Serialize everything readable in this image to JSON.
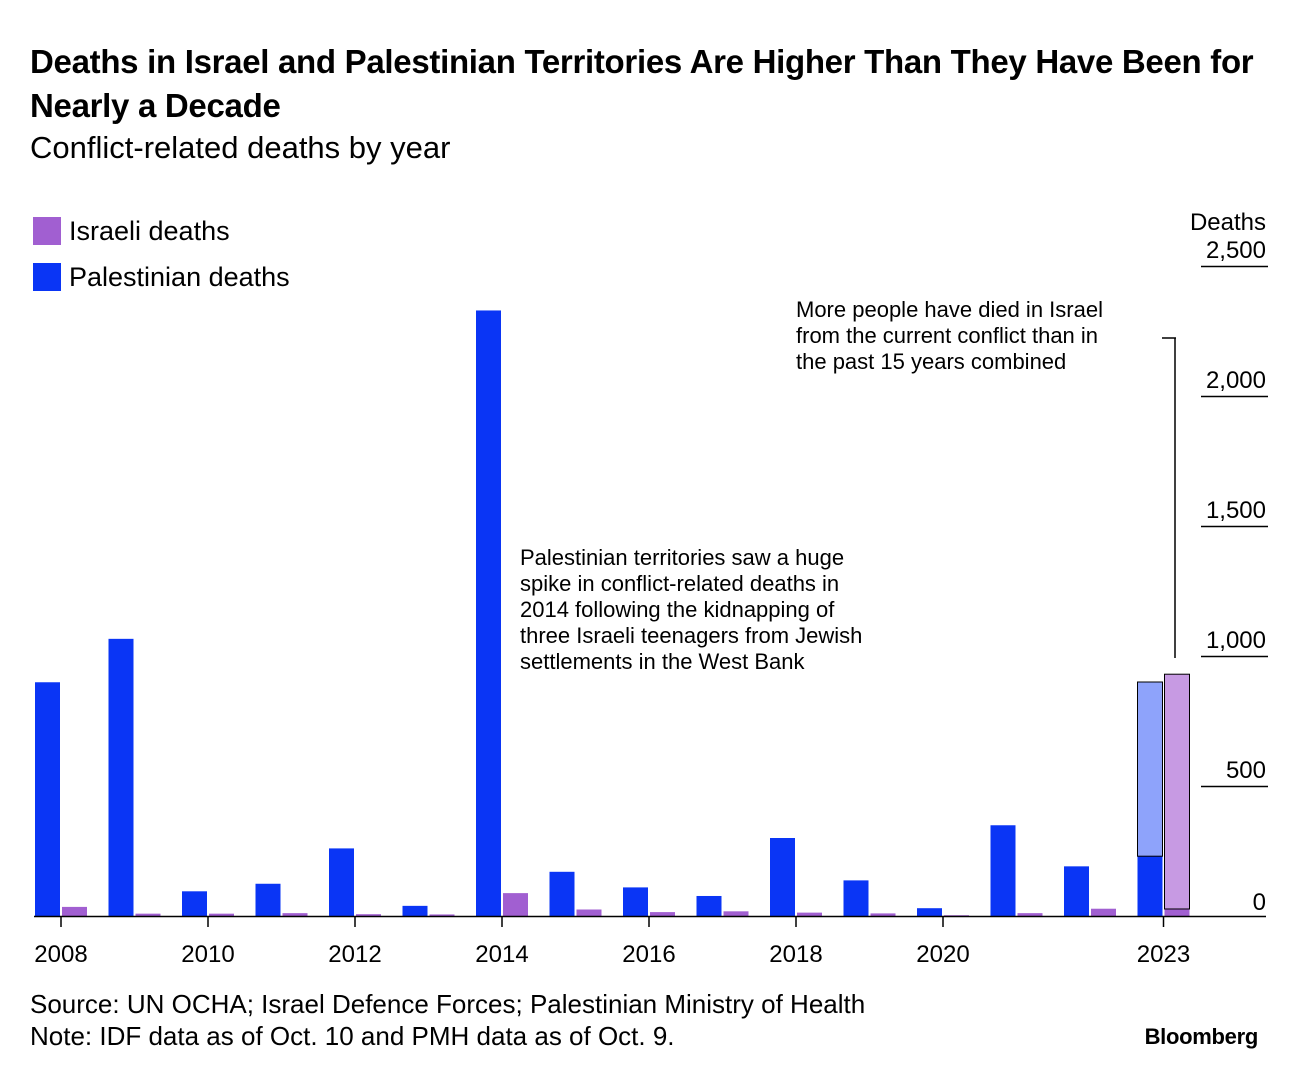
{
  "title": "Deaths in Israel and Palestinian Territories Are Higher Than They Have Been for Nearly a Decade",
  "subtitle": "Conflict-related deaths by year",
  "legend": [
    {
      "label": "Israeli deaths",
      "color": "#a15fd1"
    },
    {
      "label": "Palestinian deaths",
      "color": "#0a35f5"
    }
  ],
  "source": "Source: UN OCHA; Israel Defence Forces; Palestinian Ministry of Health",
  "note": "Note: IDF data as of Oct. 10 and PMH data as of Oct. 9.",
  "brand": "Bloomberg",
  "annotations": {
    "spike_2014": [
      "Palestinian territories saw a huge",
      "spike in conflict-related deaths in",
      "2014 following the kidnapping of",
      "three Israeli teenagers from Jewish",
      "settlements in the West Bank"
    ],
    "current_2023": [
      "More people have died in Israel",
      "from the current conflict than in",
      "the past 15 years combined"
    ]
  },
  "chart_data": {
    "type": "bar",
    "ylabel": "Deaths",
    "ylim": [
      0,
      2500
    ],
    "yticks": [
      0,
      500,
      1000,
      1500,
      2000,
      2500
    ],
    "ytick_labels": [
      "0",
      "500",
      "1,000",
      "1,500",
      "2,000",
      "2,500"
    ],
    "xtick_labels": [
      "2008",
      "2010",
      "2012",
      "2014",
      "2016",
      "2018",
      "2020",
      "2023"
    ],
    "categories": [
      "2008",
      "2009",
      "2010",
      "2011",
      "2012",
      "2013",
      "2014",
      "2015",
      "2016",
      "2017",
      "2018",
      "2019",
      "2020",
      "2021",
      "2022",
      "2023"
    ],
    "series": [
      {
        "name": "Palestinian deaths",
        "color": "#0a35f5",
        "values": [
          899,
          1066,
          95,
          124,
          260,
          39,
          2329,
          170,
          110,
          77,
          300,
          137,
          30,
          349,
          191,
          230
        ]
      },
      {
        "name": "Israeli deaths",
        "color": "#a15fd1",
        "values": [
          35,
          9,
          9,
          11,
          7,
          6,
          88,
          25,
          15,
          18,
          13,
          10,
          3,
          11,
          28,
          27
        ]
      }
    ],
    "current_conflict_2023": {
      "Palestinian deaths": 900,
      "Israeli deaths": 930
    }
  }
}
